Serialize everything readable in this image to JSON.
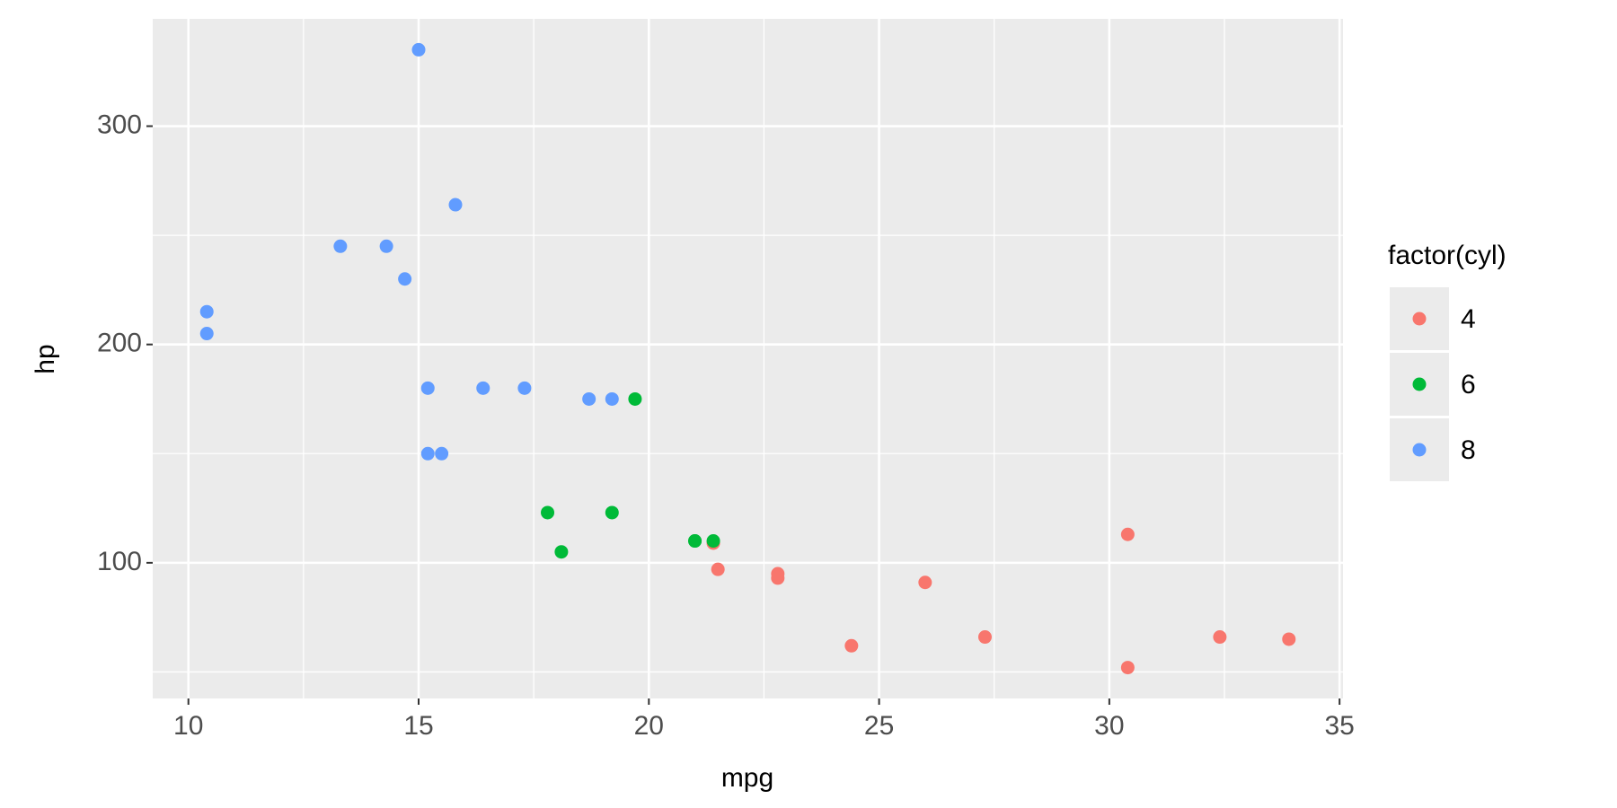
{
  "chart_data": {
    "type": "scatter",
    "x_label": "mpg",
    "y_label": "hp",
    "legend_title": "factor(cyl)",
    "xlim": [
      9.225,
      35.075
    ],
    "ylim": [
      37.85,
      349.15
    ],
    "xticks": [
      10,
      15,
      20,
      25,
      30,
      35
    ],
    "yticks": [
      100,
      200,
      300
    ],
    "grid": true,
    "legend": "right",
    "series": [
      {
        "name": "4",
        "color": "#F8766D",
        "x": [
          22.8,
          24.4,
          22.8,
          32.4,
          30.4,
          33.9,
          21.5,
          27.3,
          26,
          30.4,
          21.4
        ],
        "values": [
          93,
          62,
          95,
          66,
          52,
          65,
          97,
          66,
          91,
          113,
          109
        ]
      },
      {
        "name": "6",
        "color": "#00BA38",
        "x": [
          21,
          21,
          21.4,
          18.1,
          19.2,
          17.8,
          19.7
        ],
        "values": [
          110,
          110,
          110,
          105,
          123,
          123,
          175
        ]
      },
      {
        "name": "8",
        "color": "#619CFF",
        "x": [
          18.7,
          14.3,
          16.4,
          17.3,
          15.2,
          10.4,
          10.4,
          14.7,
          15.5,
          15.2,
          13.3,
          19.2,
          15.8,
          15.0
        ],
        "values": [
          175,
          245,
          180,
          180,
          180,
          205,
          215,
          230,
          150,
          150,
          245,
          175,
          264,
          335
        ]
      }
    ]
  }
}
